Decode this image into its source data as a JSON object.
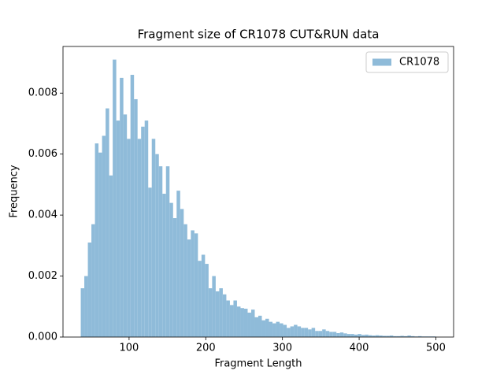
{
  "chart_data": {
    "type": "histogram",
    "title": "Fragment size of CR1078 CUT&RUN data",
    "xlabel": "Fragment Length",
    "ylabel": "Frequency",
    "series": [
      {
        "name": "CR1078",
        "color": "#8fbbd9"
      }
    ],
    "legend": "upper right",
    "bins": [
      37,
      41.63,
      46.26,
      50.89,
      55.52,
      60.15,
      64.78,
      69.41,
      74.04,
      78.67,
      83.3,
      87.93,
      92.56,
      97.19,
      101.82,
      106.45,
      111.08,
      115.71,
      120.34,
      124.97,
      129.6,
      134.23,
      138.86,
      143.49,
      148.12,
      152.75,
      157.38,
      162.01,
      166.64,
      171.27,
      175.9,
      180.53,
      185.16,
      189.79,
      194.42,
      199.05,
      203.68,
      208.31,
      212.94,
      217.57,
      222.2,
      226.83,
      231.46,
      236.09,
      240.72,
      245.35,
      249.98,
      254.61,
      259.24,
      263.87,
      268.5,
      273.13,
      277.76,
      282.39,
      287.02,
      291.65,
      296.28,
      300.91,
      305.54,
      310.17,
      314.8,
      319.43,
      324.06,
      328.69,
      333.32,
      337.95,
      342.58,
      347.21,
      351.84,
      356.47,
      361.1,
      365.73,
      370.36,
      374.99,
      379.62,
      384.25,
      388.88,
      393.51,
      398.14,
      402.77,
      407.4,
      412.03,
      416.66,
      421.29,
      425.92,
      430.55,
      435.18,
      439.81,
      444.44,
      449.07,
      453.7,
      458.33,
      462.96,
      467.59,
      472.22,
      476.85,
      481.48,
      486.11,
      490.74,
      495.37,
      500
    ],
    "values": [
      0.0016,
      0.002,
      0.0031,
      0.0037,
      0.00635,
      0.00605,
      0.0066,
      0.0075,
      0.0053,
      0.0091,
      0.0071,
      0.0085,
      0.0073,
      0.0065,
      0.0086,
      0.0078,
      0.0065,
      0.0069,
      0.0071,
      0.0049,
      0.0065,
      0.006,
      0.0056,
      0.0047,
      0.0056,
      0.0044,
      0.0039,
      0.0048,
      0.0042,
      0.0037,
      0.0032,
      0.0035,
      0.0034,
      0.0025,
      0.0027,
      0.0024,
      0.0016,
      0.002,
      0.0015,
      0.0016,
      0.0014,
      0.0012,
      0.00105,
      0.0012,
      0.001,
      0.00095,
      0.00093,
      0.0008,
      0.0009,
      0.00065,
      0.0007,
      0.00055,
      0.0006,
      0.0005,
      0.00045,
      0.0005,
      0.00045,
      0.0004,
      0.0003,
      0.00035,
      0.0004,
      0.00035,
      0.0003,
      0.0003,
      0.00025,
      0.0003,
      0.0002,
      0.0002,
      0.00025,
      0.0002,
      0.00017,
      0.00017,
      0.00013,
      0.00015,
      0.00012,
      0.0001,
      0.0001,
      8e-05,
      0.0001,
      7e-05,
      8e-05,
      6e-05,
      5e-05,
      6e-05,
      5e-05,
      4e-05,
      4e-05,
      5e-05,
      3e-05,
      3e-05,
      4e-05,
      3e-05,
      5e-05,
      3e-05,
      2e-05,
      3e-05,
      2e-05,
      2e-05,
      2e-05,
      2e-05
    ],
    "xlim": [
      13.85,
      523.15
    ],
    "ylim": [
      0,
      0.00953
    ],
    "xticks": [
      100,
      200,
      300,
      400,
      500
    ],
    "yticks": [
      {
        "value": 0,
        "label": "0.000"
      },
      {
        "value": 0.002,
        "label": "0.002"
      },
      {
        "value": 0.004,
        "label": "0.004"
      },
      {
        "value": 0.006,
        "label": "0.006"
      },
      {
        "value": 0.008,
        "label": "0.008"
      }
    ]
  }
}
